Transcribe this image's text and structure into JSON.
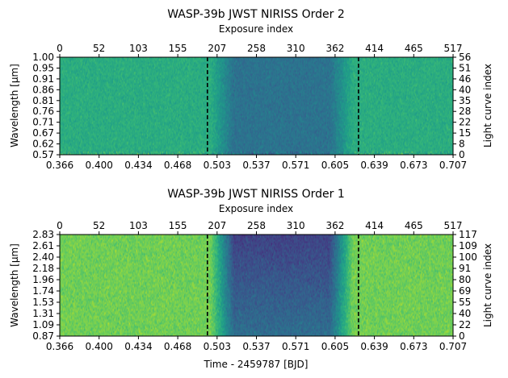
{
  "chart_data": [
    {
      "type": "heatmap",
      "title": "WASP-39b JWST NIRISS Order 2",
      "xlabel": "",
      "ylabel": "Wavelength [μm]",
      "top_xlabel": "Exposure index",
      "right_ylabel": "Light curve index",
      "xlim": [
        0.366,
        0.707
      ],
      "ylim": [
        0.57,
        1.0
      ],
      "x_ticks": [
        "0.366",
        "0.400",
        "0.434",
        "0.468",
        "0.503",
        "0.537",
        "0.571",
        "0.605",
        "0.639",
        "0.673",
        "0.707"
      ],
      "y_ticks": [
        "0.57",
        "0.62",
        "0.67",
        "0.71",
        "0.76",
        "0.81",
        "0.86",
        "0.91",
        "0.95",
        "1.00"
      ],
      "top_ticks": [
        "0",
        "52",
        "103",
        "155",
        "207",
        "258",
        "310",
        "362",
        "414",
        "465",
        "517"
      ],
      "right_ticks": [
        "0",
        "8",
        "15",
        "22",
        "28",
        "35",
        "40",
        "46",
        "51",
        "56"
      ],
      "exposure_range": [
        0,
        517
      ],
      "light_curve_range": [
        0,
        56
      ],
      "transit_markers": [
        0.494,
        0.625
      ],
      "transit_window": [
        0.497,
        0.62
      ],
      "ingress_duration": 0.02,
      "noise_level": 0.07,
      "colormap": "viridis",
      "baseline_level": 0.62,
      "transit_level": 0.38,
      "transit_level_long_wavelength": 0.38
    },
    {
      "type": "heatmap",
      "title": "WASP-39b JWST NIRISS Order 1",
      "xlabel": "Time - 2459787 [BJD]",
      "ylabel": "Wavelength [μm]",
      "top_xlabel": "Exposure index",
      "right_ylabel": "Light curve index",
      "xlim": [
        0.366,
        0.707
      ],
      "ylim": [
        0.87,
        2.83
      ],
      "x_ticks": [
        "0.366",
        "0.400",
        "0.434",
        "0.468",
        "0.503",
        "0.537",
        "0.571",
        "0.605",
        "0.639",
        "0.673",
        "0.707"
      ],
      "y_ticks": [
        "0.87",
        "1.09",
        "1.31",
        "1.53",
        "1.74",
        "1.96",
        "2.18",
        "2.40",
        "2.61",
        "2.83"
      ],
      "top_ticks": [
        "0",
        "52",
        "103",
        "155",
        "207",
        "258",
        "310",
        "362",
        "414",
        "465",
        "517"
      ],
      "right_ticks": [
        "0",
        "22",
        "40",
        "55",
        "69",
        "80",
        "91",
        "100",
        "109",
        "117"
      ],
      "exposure_range": [
        0,
        517
      ],
      "light_curve_range": [
        0,
        117
      ],
      "transit_markers": [
        0.494,
        0.625
      ],
      "transit_window": [
        0.497,
        0.62
      ],
      "ingress_duration": 0.02,
      "noise_level": 0.08,
      "colormap": "viridis",
      "baseline_level": 0.78,
      "transit_level": 0.36,
      "transit_level_long_wavelength": 0.2
    }
  ]
}
